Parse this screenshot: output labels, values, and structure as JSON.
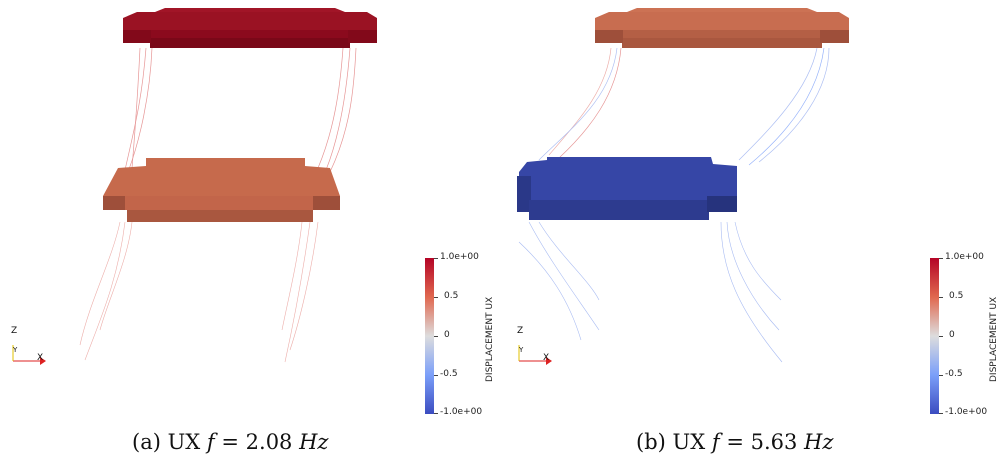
{
  "panels": [
    {
      "caption_prefix": "(a) UX",
      "caption_var": "f",
      "caption_eq": "= 2.08",
      "caption_unit": "Hz",
      "colorbar": {
        "title": "DISPLACEMENT UX",
        "ticks": [
          "1.0e+00",
          "0.5",
          "0",
          "-0.5",
          "-1.0e+00"
        ]
      },
      "axes": {
        "z": "Z",
        "y": "Y",
        "x": "X"
      }
    },
    {
      "caption_prefix": "(b) UX",
      "caption_var": "f",
      "caption_eq": "= 5.63",
      "caption_unit": "Hz",
      "colorbar": {
        "title": "DISPLACEMENT UX",
        "ticks": [
          "1.0e+00",
          "0.5",
          "0",
          "-0.5",
          "-1.0e+00"
        ]
      },
      "axes": {
        "z": "Z",
        "y": "Y",
        "x": "X"
      }
    }
  ],
  "colors": {
    "max_red": "#8b0a1d",
    "mid_orange": "#c2654a",
    "zero": "#dcdcdc",
    "min_blue": "#2f3f96"
  }
}
